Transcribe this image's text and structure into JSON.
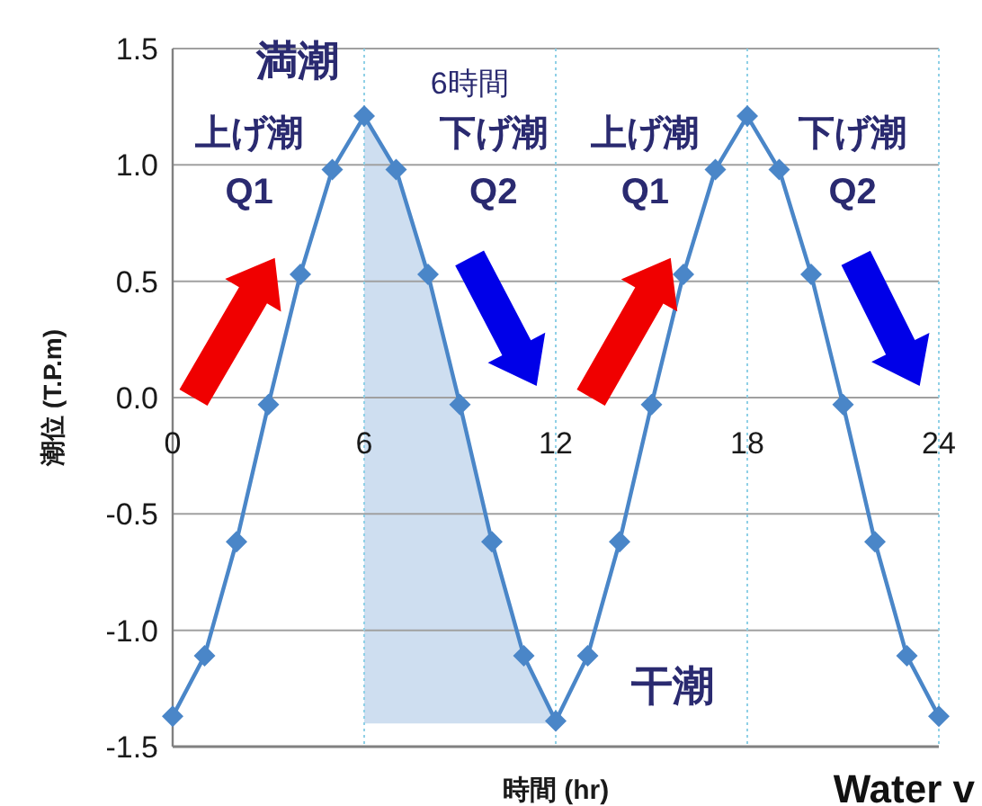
{
  "chart_data": {
    "type": "line",
    "xlabel": "時間 (hr)",
    "ylabel": "潮位 (T.P.m)",
    "x": [
      0,
      1,
      2,
      3,
      4,
      5,
      6,
      7,
      8,
      9,
      10,
      11,
      12,
      13,
      14,
      15,
      16,
      17,
      18,
      19,
      20,
      21,
      22,
      23,
      24
    ],
    "series": [
      {
        "color": "#4a86c8",
        "values": [
          -1.37,
          -1.11,
          -0.62,
          -0.03,
          0.53,
          0.98,
          1.21,
          0.98,
          0.53,
          -0.03,
          -0.62,
          -1.11,
          -1.39,
          -1.11,
          -0.62,
          -0.03,
          0.53,
          0.98,
          1.21,
          0.98,
          0.53,
          -0.03,
          -0.62,
          -1.11,
          -1.37
        ],
        "lower": [
          null,
          null,
          null,
          null,
          null,
          null,
          -1.4,
          -1.4,
          -1.4,
          -1.4,
          -1.4,
          -1.4,
          -1.4,
          null,
          null,
          null,
          null,
          null,
          null,
          null,
          null,
          null,
          null,
          null,
          null
        ],
        "upper": [
          null,
          null,
          null,
          null,
          null,
          null,
          1.21,
          0.98,
          0.53,
          -0.03,
          -0.62,
          -1.11,
          -1.39,
          null,
          null,
          null,
          null,
          null,
          null,
          null,
          null,
          null,
          null,
          null,
          null
        ]
      }
    ],
    "marker": "diamond",
    "line_style": "solid",
    "grid": true,
    "xlim": [
      0,
      24
    ],
    "xticks": [
      0,
      6,
      12,
      18,
      24
    ],
    "ylim": [
      -1.5,
      1.5
    ],
    "yticks": [
      {
        "value": -1.5,
        "label": "-1.5"
      },
      {
        "value": -1,
        "label": "-1.0"
      },
      {
        "value": -0.5,
        "label": "-0.5"
      },
      {
        "value": 0,
        "label": "0.0"
      },
      {
        "value": 0.5,
        "label": "0.5"
      },
      {
        "value": 1,
        "label": "1.0"
      },
      {
        "value": 1.5,
        "label": "1.5"
      }
    ],
    "annotations": [
      {
        "text": "満潮",
        "x": 6,
        "y": 1.21
      },
      {
        "text": "干潮",
        "x": 12,
        "y": -1.39
      },
      "6時間",
      "上げ潮",
      "Q1",
      "下げ潮",
      "Q2",
      "上げ潮",
      "Q1",
      "下げ潮",
      "Q2",
      "Water v"
    ]
  }
}
